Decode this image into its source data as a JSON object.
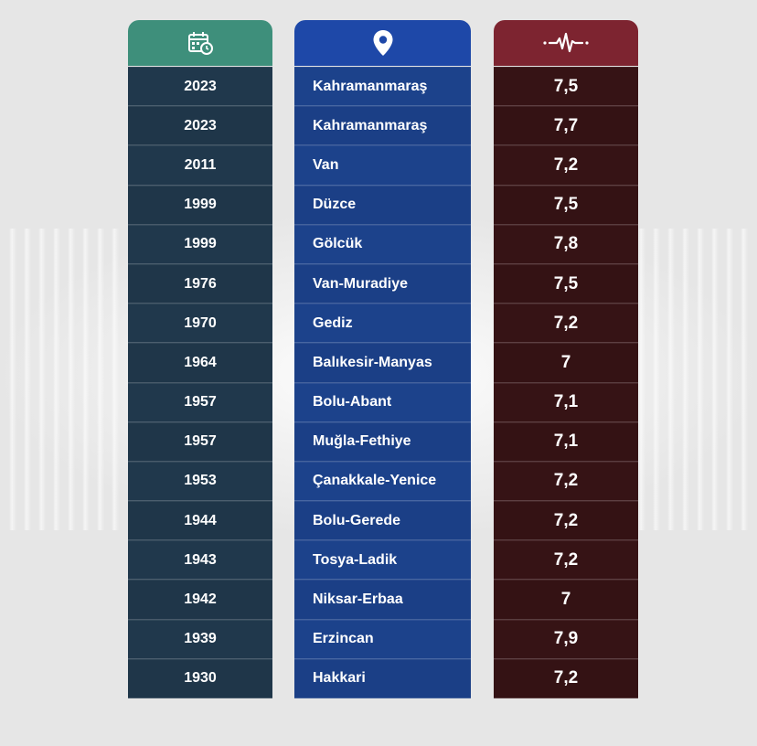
{
  "headers": {
    "year_icon": "calendar-clock-icon",
    "place_icon": "location-pin-icon",
    "magnitude_icon": "heartbeat-pulse-icon"
  },
  "colors": {
    "year_header": "#3e8f7b",
    "place_header": "#1e48a8",
    "magnitude_header": "#7d2430",
    "year_cell": "#1f3649",
    "place_cell": "#1b3f86",
    "magnitude_cell": "#341214"
  },
  "rows": [
    {
      "year": "2023",
      "place": "Kahramanmaraş",
      "magnitude": "7,5"
    },
    {
      "year": "2023",
      "place": "Kahramanmaraş",
      "magnitude": "7,7"
    },
    {
      "year": "2011",
      "place": "Van",
      "magnitude": "7,2"
    },
    {
      "year": "1999",
      "place": "Düzce",
      "magnitude": "7,5"
    },
    {
      "year": "1999",
      "place": "Gölcük",
      "magnitude": "7,8"
    },
    {
      "year": "1976",
      "place": "Van-Muradiye",
      "magnitude": "7,5"
    },
    {
      "year": "1970",
      "place": "Gediz",
      "magnitude": "7,2"
    },
    {
      "year": "1964",
      "place": "Balıkesir-Manyas",
      "magnitude": "7"
    },
    {
      "year": "1957",
      "place": "Bolu-Abant",
      "magnitude": "7,1"
    },
    {
      "year": "1957",
      "place": "Muğla-Fethiye",
      "magnitude": "7,1"
    },
    {
      "year": "1953",
      "place": "Çanakkale-Yenice",
      "magnitude": "7,2"
    },
    {
      "year": "1944",
      "place": "Bolu-Gerede",
      "magnitude": "7,2"
    },
    {
      "year": "1943",
      "place": "Tosya-Ladik",
      "magnitude": "7,2"
    },
    {
      "year": "1942",
      "place": "Niksar-Erbaa",
      "magnitude": "7"
    },
    {
      "year": "1939",
      "place": "Erzincan",
      "magnitude": "7,9"
    },
    {
      "year": "1930",
      "place": "Hakkari",
      "magnitude": "7,2"
    }
  ]
}
